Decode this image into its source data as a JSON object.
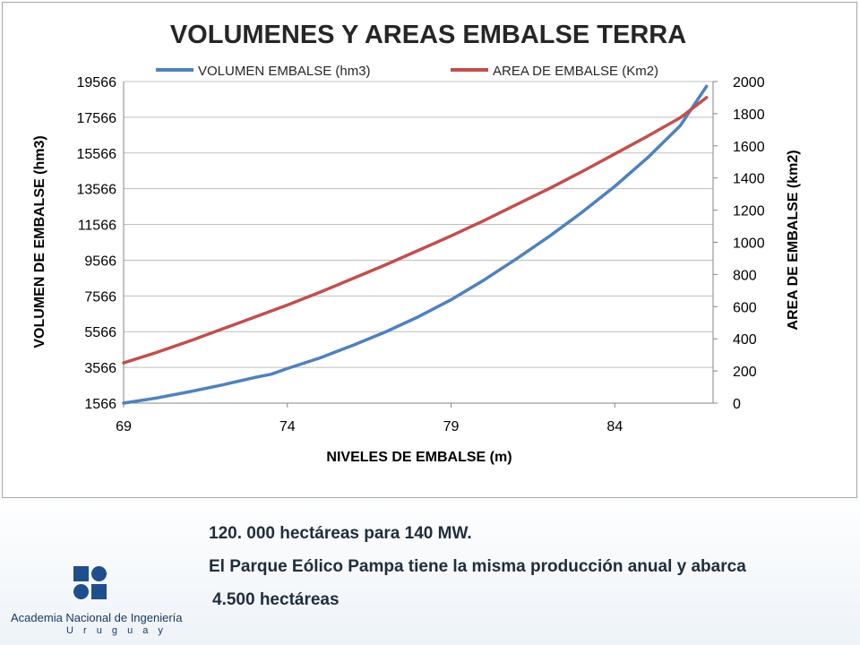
{
  "chart_data": {
    "type": "line",
    "title": "VOLUMENES Y AREAS EMBALSE TERRA",
    "xlabel": "NIVELES DE EMBALSE (m)",
    "ylabel_left": "VOLUMEN DE EMBALSE (hm3)",
    "ylabel_right": "AREA DE EMBALSE (km2)",
    "x_ticks": [
      "69",
      "74",
      "79",
      "84"
    ],
    "xlim": [
      69,
      87
    ],
    "y_left_ticks": [
      "1566",
      "3566",
      "5566",
      "7566",
      "9566",
      "11566",
      "13566",
      "15566",
      "17566",
      "19566"
    ],
    "y_left_lim": [
      1566,
      19566
    ],
    "y_right_ticks": [
      "0",
      "200",
      "400",
      "600",
      "800",
      "1000",
      "1200",
      "1400",
      "1600",
      "1800",
      "2000"
    ],
    "y_right_lim": [
      0,
      2000
    ],
    "legend_position": "top",
    "grid": "horizontal major gridlines",
    "series": [
      {
        "name": "VOLUMEN EMBALSE (hm3)",
        "axis": "left",
        "color": "#4f81bd",
        "x": [
          69,
          70,
          71,
          72,
          73,
          73.5,
          74,
          75,
          76,
          77,
          78,
          79,
          80,
          81,
          82,
          83,
          84,
          85,
          86,
          86.8
        ],
        "values": [
          1566,
          1850,
          2200,
          2580,
          3000,
          3180,
          3500,
          4100,
          4800,
          5550,
          6400,
          7350,
          8450,
          9650,
          10900,
          12250,
          13700,
          15300,
          17100,
          19300
        ]
      },
      {
        "name": "AREA DE EMBALSE (Km2)",
        "axis": "right",
        "color": "#c0504d",
        "x": [
          69,
          70,
          71,
          72,
          73,
          74,
          75,
          76,
          77,
          78,
          79,
          80,
          81,
          82,
          83,
          84,
          85,
          86,
          86.8
        ],
        "values": [
          250,
          315,
          385,
          460,
          535,
          610,
          690,
          775,
          860,
          950,
          1040,
          1135,
          1235,
          1335,
          1440,
          1550,
          1660,
          1775,
          1900
        ]
      }
    ]
  },
  "footer": {
    "line1": "120. 000 hectáreas para 140 MW.",
    "line2": "El Parque Eólico Pampa tiene la misma producción anual y abarca",
    "line3": "4.500 hectáreas"
  },
  "logo": {
    "name": "Academia Nacional de Ingeniería",
    "country": "U r u g u a y"
  }
}
